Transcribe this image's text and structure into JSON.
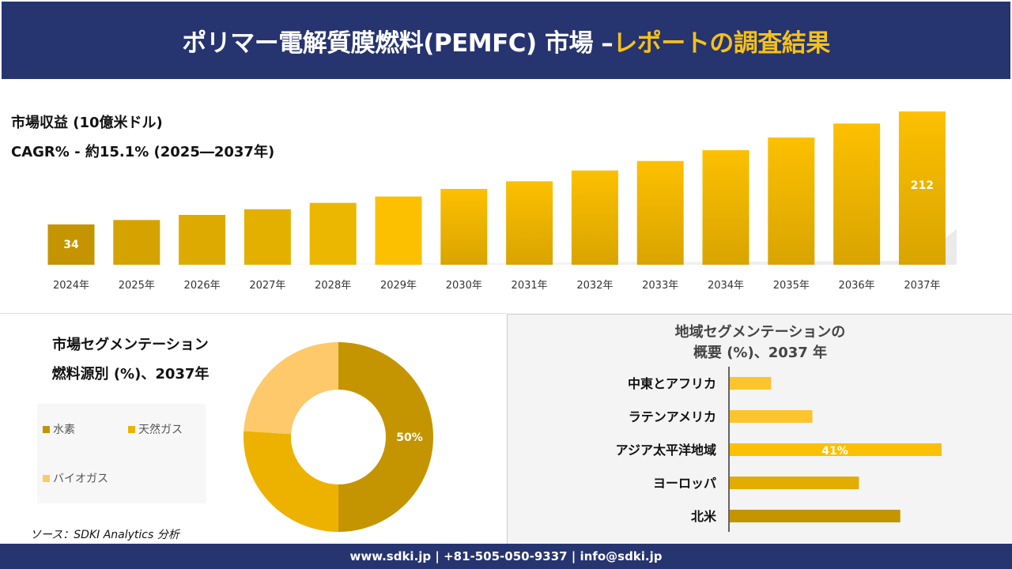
{
  "header": {
    "title_main": "ポリマー電解質膜燃料(PEMFC) 市場 –",
    "title_highlight": "レポートの調査結果"
  },
  "revenue": {
    "label": "市場収益 (10億米ドル)",
    "cagr": "CAGR% - 約15.1% (2025―2037年)"
  },
  "chart_data": [
    {
      "type": "bar",
      "categories": [
        "2024年",
        "2025年",
        "2026年",
        "2027年",
        "2028年",
        "2029年",
        "2030年",
        "2031年",
        "2032年",
        "2033年",
        "2034年",
        "2035年",
        "2036年",
        "2037年"
      ],
      "values": [
        34,
        41,
        49,
        58,
        68,
        78,
        90,
        102,
        119,
        134,
        151,
        171,
        193,
        212
      ],
      "data_labels": {
        "0": "34",
        "13": "212"
      },
      "colors": [
        "#c49500",
        "#d4a300",
        "#dcaa00",
        "#e3b000",
        "#ecb700",
        "#fcc000",
        "#f7bd00",
        "#f7bd00",
        "#f7bd00",
        "#f7bd00",
        "#f7bd00",
        "#f7bd00",
        "#f7bd00",
        "#f7bd00"
      ]
    },
    {
      "type": "pie",
      "title": "市場セグメンテーション",
      "subtitle": "燃料源別 (%)、2037年",
      "categories": [
        "水素",
        "天然ガス",
        "バイオガス"
      ],
      "values": [
        50,
        26,
        24
      ],
      "data_labels": [
        "50%",
        "",
        ""
      ],
      "colors": [
        "#c49500",
        "#edb100",
        "#fdc96a"
      ]
    },
    {
      "type": "bar",
      "orientation": "horizontal",
      "title": "地域セグメンテーションの",
      "subtitle": "概要 (%)、2037 年",
      "categories": [
        "中東とアフリカ",
        "ラテンアメリカ",
        "アジア太平洋地域",
        "ヨーロッパ",
        "北米"
      ],
      "values": [
        8,
        16,
        41,
        25,
        33
      ],
      "data_labels": [
        "",
        "",
        "41%",
        "",
        ""
      ],
      "colors": [
        "#fcc52e",
        "#fcc52e",
        "#fcc000",
        "#e2ad00",
        "#c49500"
      ]
    }
  ],
  "source": "ソース：SDKI Analytics 分析",
  "footer": "www.sdki.jp | +81-505-050-9337 | info@sdki.jp"
}
